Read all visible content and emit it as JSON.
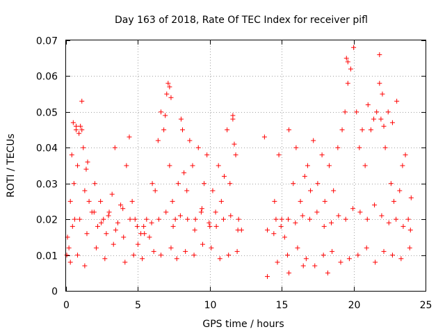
{
  "chart_data": {
    "type": "scatter",
    "title": "Day 163 of 2018, Rate Of TEC Index for receiver pifl",
    "xlabel": "GPS time / hours",
    "ylabel": "ROTI / TECUs",
    "xlim": [
      0,
      25
    ],
    "ylim": [
      0,
      0.07
    ],
    "x_ticks": [
      0,
      5,
      10,
      15,
      20,
      25
    ],
    "y_ticks": [
      0,
      0.01,
      0.02,
      0.03,
      0.04,
      0.05,
      0.06,
      0.07
    ],
    "x_tick_labels": [
      "0",
      "5",
      "10",
      "15",
      "20",
      "25"
    ],
    "y_tick_labels": [
      "0",
      "0.01",
      "0.02",
      "0.03",
      "0.04",
      "0.05",
      "0.06",
      "0.07"
    ],
    "grid": true,
    "marker": "+",
    "color": "#ff0000",
    "series": [
      {
        "name": "ROTI",
        "x": [
          0.1,
          0.2,
          0.3,
          0.4,
          0.5,
          0.55,
          0.6,
          0.7,
          0.8,
          0.9,
          1.0,
          1.1,
          1.2,
          1.3,
          1.4,
          1.5,
          1.6,
          1.8,
          2.0,
          2.2,
          2.4,
          2.6,
          2.8,
          3.0,
          3.2,
          3.4,
          3.6,
          3.8,
          4.0,
          4.2,
          4.4,
          4.6,
          4.8,
          5.0,
          5.2,
          5.4,
          5.6,
          5.8,
          6.0,
          6.2,
          6.4,
          6.6,
          6.8,
          7.0,
          7.1,
          7.2,
          7.4,
          7.6,
          7.8,
          8.0,
          8.2,
          8.4,
          8.6,
          8.8,
          9.0,
          9.2,
          9.4,
          9.6,
          9.8,
          10.0,
          10.2,
          10.4,
          10.6,
          10.8,
          11.0,
          11.2,
          11.4,
          11.6,
          11.8,
          12.0,
          12.2,
          13.8,
          14.0,
          14.5,
          14.6,
          14.8,
          15.0,
          15.2,
          15.5,
          15.8,
          16.0,
          16.3,
          16.6,
          16.8,
          17.0,
          17.2,
          17.5,
          17.8,
          18.0,
          18.3,
          18.6,
          18.9,
          19.2,
          19.4,
          19.6,
          19.8,
          20.0,
          20.2,
          20.4,
          20.6,
          20.8,
          21.0,
          21.2,
          21.4,
          21.6,
          21.8,
          22.0,
          22.2,
          22.4,
          22.6,
          22.8,
          23.0,
          23.2,
          23.4,
          23.6,
          23.8,
          24.0,
          0.3,
          0.8,
          1.3,
          2.1,
          2.7,
          3.3,
          4.1,
          4.7,
          5.3,
          6.1,
          6.6,
          7.3,
          7.7,
          8.3,
          8.9,
          9.5,
          10.1,
          10.7,
          11.3,
          11.9,
          14.7,
          15.4,
          16.1,
          16.7,
          17.3,
          17.9,
          18.5,
          19.1,
          19.7,
          20.3,
          20.9,
          21.5,
          22.1,
          22.7,
          23.3,
          23.9,
          0.05,
          0.45,
          0.95,
          1.45,
          1.95,
          2.45,
          2.95,
          3.45,
          3.95,
          4.45,
          4.95,
          5.45,
          5.95,
          6.45,
          6.95,
          7.45,
          7.95,
          8.45,
          8.95,
          9.45,
          9.95,
          10.45,
          10.95,
          11.45,
          11.95,
          14.45,
          14.95,
          15.45,
          15.95,
          16.45,
          16.95,
          17.45,
          17.95,
          18.45,
          18.95,
          19.45,
          19.95,
          20.45,
          20.95,
          21.45,
          21.95,
          22.45,
          22.95,
          23.45,
          23.95,
          7.2,
          8.1,
          19.5,
          19.6,
          21.8,
          21.9,
          22.1,
          22.7,
          1.1,
          0.7,
          6.9,
          7.3,
          11.6,
          11.7,
          14.0,
          15.5,
          16.5,
          18.2
        ],
        "y": [
          0.015,
          0.012,
          0.025,
          0.038,
          0.047,
          0.03,
          0.02,
          0.045,
          0.035,
          0.044,
          0.046,
          0.053,
          0.04,
          0.028,
          0.034,
          0.036,
          0.025,
          0.022,
          0.03,
          0.018,
          0.025,
          0.02,
          0.016,
          0.022,
          0.027,
          0.04,
          0.019,
          0.024,
          0.015,
          0.035,
          0.043,
          0.025,
          0.02,
          0.013,
          0.016,
          0.018,
          0.02,
          0.015,
          0.03,
          0.028,
          0.042,
          0.05,
          0.045,
          0.055,
          0.058,
          0.035,
          0.025,
          0.02,
          0.03,
          0.048,
          0.033,
          0.028,
          0.042,
          0.035,
          0.02,
          0.04,
          0.022,
          0.03,
          0.038,
          0.018,
          0.028,
          0.022,
          0.035,
          0.025,
          0.032,
          0.045,
          0.03,
          0.049,
          0.038,
          0.02,
          0.017,
          0.043,
          0.017,
          0.025,
          0.02,
          0.038,
          0.02,
          0.015,
          0.045,
          0.03,
          0.04,
          0.025,
          0.032,
          0.035,
          0.028,
          0.042,
          0.03,
          0.038,
          0.025,
          0.035,
          0.028,
          0.04,
          0.045,
          0.05,
          0.058,
          0.062,
          0.068,
          0.05,
          0.04,
          0.045,
          0.035,
          0.052,
          0.045,
          0.048,
          0.05,
          0.066,
          0.055,
          0.04,
          0.05,
          0.03,
          0.025,
          0.053,
          0.028,
          0.035,
          0.038,
          0.02,
          0.026,
          0.008,
          0.01,
          0.007,
          0.012,
          0.009,
          0.013,
          0.008,
          0.01,
          0.009,
          0.011,
          0.01,
          0.012,
          0.009,
          0.011,
          0.01,
          0.013,
          0.012,
          0.009,
          0.01,
          0.011,
          0.008,
          0.01,
          0.012,
          0.009,
          0.007,
          0.01,
          0.011,
          0.008,
          0.009,
          0.01,
          0.012,
          0.008,
          0.011,
          0.01,
          0.009,
          0.012,
          0.01,
          0.018,
          0.02,
          0.016,
          0.022,
          0.019,
          0.021,
          0.017,
          0.023,
          0.02,
          0.018,
          0.016,
          0.019,
          0.02,
          0.022,
          0.018,
          0.021,
          0.02,
          0.017,
          0.023,
          0.019,
          0.018,
          0.02,
          0.021,
          0.017,
          0.016,
          0.018,
          0.02,
          0.019,
          0.021,
          0.02,
          0.022,
          0.018,
          0.019,
          0.021,
          0.02,
          0.023,
          0.022,
          0.02,
          0.024,
          0.021,
          0.019,
          0.02,
          0.018,
          0.017,
          0.057,
          0.045,
          0.065,
          0.064,
          0.058,
          0.048,
          0.046,
          0.047,
          0.045,
          0.046,
          0.049,
          0.054,
          0.048,
          0.041,
          0.004,
          0.005,
          0.007,
          0.005
        ]
      }
    ]
  }
}
